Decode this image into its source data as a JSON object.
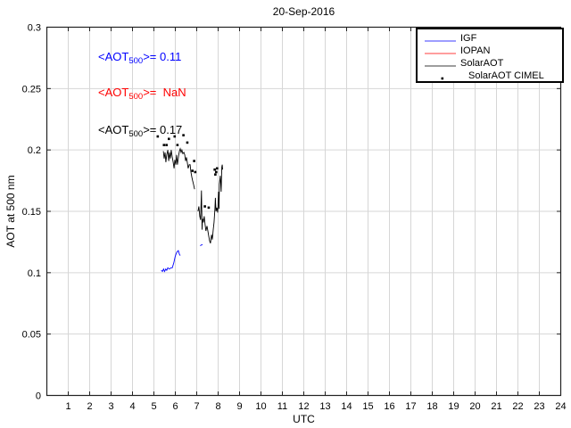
{
  "title": "20-Sep-2016",
  "axes": {
    "xlabel": "UTC",
    "ylabel": "AOT at 500 nm",
    "x_ticks": [
      "1",
      "2",
      "3",
      "4",
      "5",
      "6",
      "7",
      "8",
      "9",
      "10",
      "11",
      "12",
      "13",
      "14",
      "15",
      "16",
      "17",
      "18",
      "19",
      "20",
      "21",
      "22",
      "23",
      "24"
    ],
    "y_ticks": [
      "0",
      "0.05",
      "0.1",
      "0.15",
      "0.2",
      "0.25",
      "0.3"
    ]
  },
  "annotations": [
    {
      "prefix": "<AOT",
      "sub": "500",
      "rest": ">= 0.11",
      "mean": "0.11",
      "color": "#0000ff"
    },
    {
      "prefix": "<AOT",
      "sub": "500",
      "rest": ">=  NaN",
      "mean": "NaN",
      "color": "#ff0000"
    },
    {
      "prefix": "<AOT",
      "sub": "500",
      "rest": ">= 0.17",
      "mean": "0.17",
      "color": "#000000"
    }
  ],
  "colors": {
    "grid": "#d6d6d6",
    "axis": "#222222",
    "igf": "#0000ff",
    "iopan": "#ff0000",
    "solaraot": "#000000",
    "background": "#ffffff"
  },
  "chart_data": {
    "type": "line",
    "title": "20-Sep-2016",
    "xlabel": "UTC",
    "ylabel": "AOT at 500 nm",
    "xlim": [
      0,
      24
    ],
    "ylim": [
      0,
      0.3
    ],
    "x_tick_values": [
      1,
      2,
      3,
      4,
      5,
      6,
      7,
      8,
      9,
      10,
      11,
      12,
      13,
      14,
      15,
      16,
      17,
      18,
      19,
      20,
      21,
      22,
      23,
      24
    ],
    "y_tick_values": [
      0,
      0.05,
      0.1,
      0.15,
      0.2,
      0.25,
      0.3
    ],
    "grid": true,
    "legend_position": "top-right",
    "series": [
      {
        "name": "IGF",
        "type": "line",
        "color": "#0000ff",
        "segments": [
          [
            [
              5.34,
              0.102
            ],
            [
              5.4,
              0.101
            ],
            [
              5.45,
              0.103
            ],
            [
              5.5,
              0.101
            ],
            [
              5.55,
              0.103
            ],
            [
              5.6,
              0.102
            ],
            [
              5.65,
              0.104
            ],
            [
              5.72,
              0.103
            ],
            [
              5.8,
              0.104
            ],
            [
              5.86,
              0.104
            ],
            [
              5.93,
              0.108
            ],
            [
              5.99,
              0.113
            ],
            [
              6.03,
              0.115
            ],
            [
              6.08,
              0.117
            ],
            [
              6.14,
              0.118
            ],
            [
              6.19,
              0.115
            ],
            [
              6.23,
              0.114
            ]
          ],
          [
            [
              7.16,
              0.122
            ],
            [
              7.27,
              0.123
            ]
          ]
        ]
      },
      {
        "name": "IOPAN",
        "type": "line",
        "color": "#ff0000",
        "segments": []
      },
      {
        "name": "SolarAOT",
        "type": "line",
        "color": "#000000",
        "segments": [
          [
            [
              5.44,
              0.199
            ],
            [
              5.48,
              0.193
            ],
            [
              5.52,
              0.198
            ],
            [
              5.56,
              0.19
            ],
            [
              5.6,
              0.196
            ],
            [
              5.65,
              0.2
            ],
            [
              5.69,
              0.191
            ],
            [
              5.73,
              0.198
            ],
            [
              5.77,
              0.193
            ],
            [
              5.81,
              0.2
            ],
            [
              5.85,
              0.195
            ],
            [
              5.9,
              0.19
            ],
            [
              5.94,
              0.185
            ],
            [
              5.98,
              0.192
            ],
            [
              6.02,
              0.188
            ],
            [
              6.06,
              0.196
            ],
            [
              6.1,
              0.188
            ],
            [
              6.15,
              0.195
            ],
            [
              6.19,
              0.199
            ],
            [
              6.23,
              0.201
            ],
            [
              6.27,
              0.198
            ],
            [
              6.31,
              0.2
            ],
            [
              6.35,
              0.197
            ],
            [
              6.4,
              0.198
            ],
            [
              6.44,
              0.196
            ],
            [
              6.48,
              0.191
            ],
            [
              6.52,
              0.194
            ],
            [
              6.56,
              0.19
            ],
            [
              6.6,
              0.185
            ],
            [
              6.65,
              0.188
            ],
            [
              6.69,
              0.188
            ],
            [
              6.73,
              0.182
            ],
            [
              6.77,
              0.178
            ],
            [
              6.81,
              0.175
            ],
            [
              6.85,
              0.172
            ],
            [
              6.9,
              0.168
            ]
          ],
          [
            [
              7.06,
              0.15
            ],
            [
              7.1,
              0.154
            ],
            [
              7.14,
              0.146
            ],
            [
              7.18,
              0.143
            ],
            [
              7.22,
              0.167
            ],
            [
              7.25,
              0.135
            ],
            [
              7.27,
              0.144
            ],
            [
              7.31,
              0.141
            ],
            [
              7.35,
              0.146
            ],
            [
              7.39,
              0.139
            ],
            [
              7.43,
              0.134
            ],
            [
              7.48,
              0.138
            ],
            [
              7.52,
              0.134
            ],
            [
              7.56,
              0.13
            ],
            [
              7.6,
              0.126
            ],
            [
              7.64,
              0.124
            ],
            [
              7.69,
              0.131
            ],
            [
              7.73,
              0.127
            ],
            [
              7.77,
              0.135
            ],
            [
              7.81,
              0.141
            ],
            [
              7.85,
              0.152
            ],
            [
              7.87,
              0.161
            ],
            [
              7.9,
              0.15
            ],
            [
              7.94,
              0.153
            ],
            [
              7.98,
              0.149
            ],
            [
              8.02,
              0.166
            ],
            [
              8.04,
              0.152
            ],
            [
              8.06,
              0.172
            ],
            [
              8.1,
              0.179
            ],
            [
              8.14,
              0.166
            ],
            [
              8.17,
              0.186
            ],
            [
              8.19,
              0.188
            ],
            [
              8.21,
              0.184
            ]
          ]
        ]
      },
      {
        "name": "SolarAOT CIMEL",
        "type": "scatter",
        "color": "#000000",
        "points": [
          [
            5.18,
            0.211
          ],
          [
            5.47,
            0.204
          ],
          [
            5.59,
            0.204
          ],
          [
            5.7,
            0.209
          ],
          [
            5.97,
            0.211
          ],
          [
            6.1,
            0.204
          ],
          [
            6.38,
            0.212
          ],
          [
            6.56,
            0.206
          ],
          [
            6.8,
            0.183
          ],
          [
            6.88,
            0.191
          ],
          [
            6.93,
            0.182
          ],
          [
            7.38,
            0.154
          ],
          [
            7.56,
            0.153
          ],
          [
            7.84,
            0.184
          ],
          [
            7.87,
            0.18
          ],
          [
            7.91,
            0.182
          ],
          [
            7.95,
            0.185
          ]
        ]
      }
    ]
  }
}
